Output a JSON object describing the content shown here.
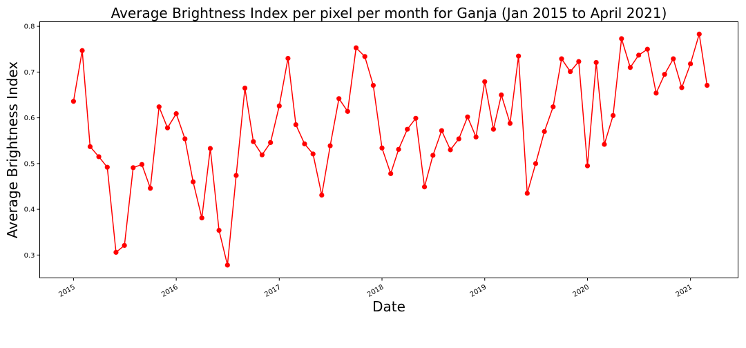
{
  "chart_data": {
    "type": "line",
    "title": "Average Brightness Index per pixel per month for Ganja (Jan 2015 to April 2021)",
    "xlabel": "Date",
    "ylabel": "Average Brightness Index",
    "ylim": [
      0.25,
      0.81
    ],
    "xlim": [
      "2014-09-03",
      "2021-06-19"
    ],
    "x_ticks": [
      "2015",
      "2016",
      "2017",
      "2018",
      "2019",
      "2020",
      "2021"
    ],
    "y_ticks": [
      "0.3",
      "0.4",
      "0.5",
      "0.6",
      "0.7",
      "0.8"
    ],
    "grid": false,
    "legend": "none",
    "line_color": "#ff0000",
    "marker": "circle",
    "series": [
      {
        "x": [
          "2015-01",
          "2015-02",
          "2015-03",
          "2015-04",
          "2015-05",
          "2015-06",
          "2015-07",
          "2015-08",
          "2015-09",
          "2015-10",
          "2015-11",
          "2015-12",
          "2016-01",
          "2016-02",
          "2016-03",
          "2016-04",
          "2016-05",
          "2016-06",
          "2016-07",
          "2016-08",
          "2016-09",
          "2016-10",
          "2016-11",
          "2016-12",
          "2017-01",
          "2017-02",
          "2017-03",
          "2017-04",
          "2017-05",
          "2017-06",
          "2017-07",
          "2017-08",
          "2017-09",
          "2017-10",
          "2017-11",
          "2017-12",
          "2018-01",
          "2018-02",
          "2018-03",
          "2018-04",
          "2018-05",
          "2018-06",
          "2018-07",
          "2018-08",
          "2018-09",
          "2018-10",
          "2018-11",
          "2018-12",
          "2019-01",
          "2019-02",
          "2019-03",
          "2019-04",
          "2019-05",
          "2019-06",
          "2019-07",
          "2019-08",
          "2019-09",
          "2019-10",
          "2019-11",
          "2019-12",
          "2020-01",
          "2020-02",
          "2020-03",
          "2020-04",
          "2020-05",
          "2020-06",
          "2020-07",
          "2020-08",
          "2020-09",
          "2020-10",
          "2020-11",
          "2020-12",
          "2021-01",
          "2021-02",
          "2021-03"
        ],
        "values": [
          0.636,
          0.747,
          0.537,
          0.515,
          0.492,
          0.306,
          0.321,
          0.491,
          0.498,
          0.446,
          0.624,
          0.578,
          0.609,
          0.554,
          0.46,
          0.381,
          0.533,
          0.354,
          0.278,
          0.474,
          0.665,
          0.548,
          0.519,
          0.546,
          0.626,
          0.73,
          0.585,
          0.543,
          0.521,
          0.431,
          0.539,
          0.642,
          0.614,
          0.753,
          0.734,
          0.671,
          0.534,
          0.478,
          0.531,
          0.575,
          0.599,
          0.449,
          0.518,
          0.572,
          0.53,
          0.554,
          0.602,
          0.558,
          0.679,
          0.575,
          0.65,
          0.588,
          0.735,
          0.435,
          0.5,
          0.57,
          0.624,
          0.729,
          0.701,
          0.723,
          0.495,
          0.721,
          0.542,
          0.605,
          0.773,
          0.71,
          0.737,
          0.75,
          0.654,
          0.695,
          0.729,
          0.666,
          0.718,
          0.783,
          0.671
        ]
      }
    ]
  }
}
